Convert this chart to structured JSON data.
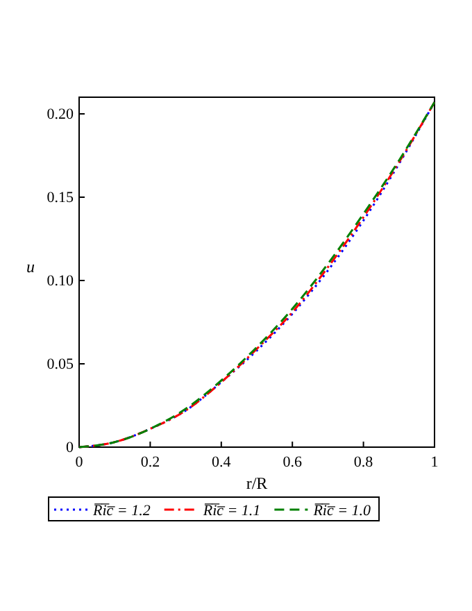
{
  "chart_data": {
    "type": "line",
    "xlabel": "r/R",
    "ylabel": "u",
    "x": [
      0,
      0.1,
      0.2,
      0.3,
      0.4,
      0.5,
      0.6,
      0.7,
      0.8,
      0.9,
      1
    ],
    "series": [
      {
        "name": "R̅i̅c̅ = 1.2",
        "color": "#0000ff",
        "line_style": "dotted",
        "values": [
          0,
          0.003,
          0.011,
          0.022,
          0.039,
          0.058,
          0.08,
          0.106,
          0.136,
          0.17,
          0.207
        ]
      },
      {
        "name": "R̅i̅c̅ = 1.1",
        "color": "#ff0000",
        "line_style": "dashdot",
        "values": [
          0,
          0.003,
          0.011,
          0.022,
          0.039,
          0.059,
          0.081,
          0.108,
          0.138,
          0.171,
          0.207
        ]
      },
      {
        "name": "R̅i̅c̅ = 1.0",
        "color": "#008000",
        "line_style": "dashed",
        "values": [
          0,
          0.003,
          0.011,
          0.023,
          0.04,
          0.06,
          0.083,
          0.11,
          0.14,
          0.172,
          0.207
        ]
      }
    ],
    "xlim": [
      0,
      1
    ],
    "ylim": [
      0,
      0.21
    ],
    "xticks": [
      0,
      0.2,
      0.4,
      0.6,
      0.8,
      1
    ],
    "yticks": [
      0,
      0.05,
      {
        "value": 0.1,
        "label": "0.10"
      },
      0.15,
      {
        "value": 0.2,
        "label": "0.20"
      }
    ],
    "legend": "bottom",
    "grid": false
  }
}
